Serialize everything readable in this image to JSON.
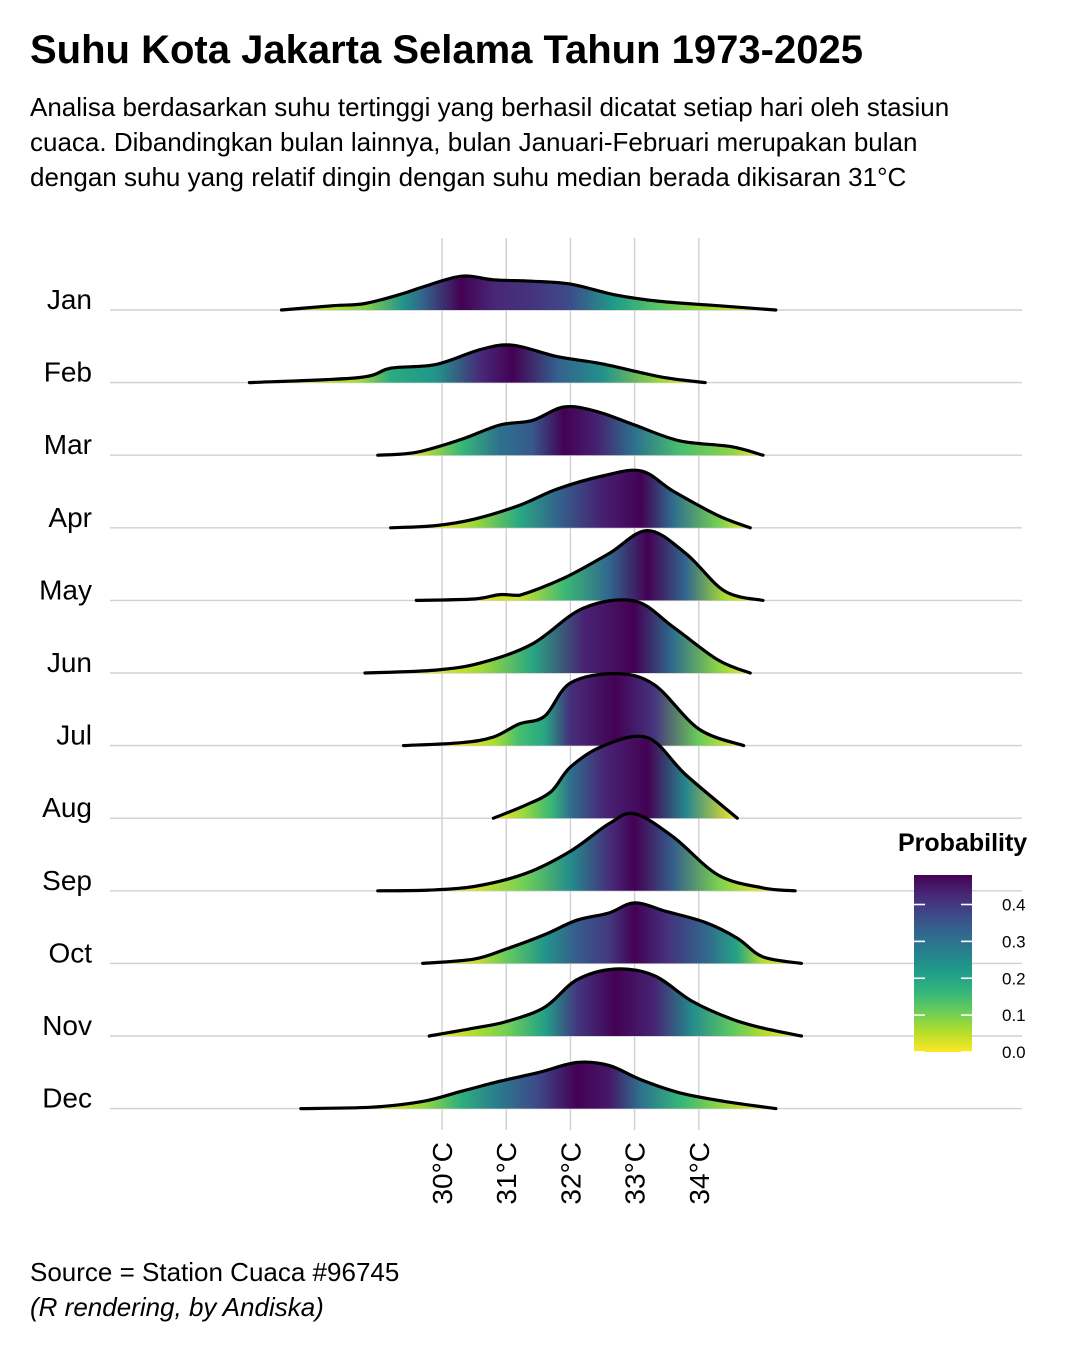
{
  "title": "Suhu Kota Jakarta Selama Tahun 1973-2025",
  "subtitle": "Analisa berdasarkan suhu tertinggi yang berhasil dicatat setiap hari oleh stasiun cuaca. Dibandingkan bulan lainnya, bulan Januari-Februari merupakan bulan dengan suhu yang relatif dingin dengan suhu median berada dikisaran 31°C",
  "caption": {
    "line1": "Source = Station Cuaca #96745",
    "line2": "(R rendering, by Andiska)"
  },
  "colors": {
    "viridis": [
      "#fde725",
      "#b5de2b",
      "#6ece58",
      "#35b779",
      "#1f9e89",
      "#26828e",
      "#31688e",
      "#3e4989",
      "#482878",
      "#440154"
    ],
    "outline": "#000000",
    "grid": "#d0d0d0",
    "background": "#ffffff"
  },
  "chart_data": {
    "type": "ridgeline",
    "xlabel": "",
    "ylabel": "",
    "x_ticks": [
      30,
      31,
      32,
      33,
      34
    ],
    "x_tick_labels": [
      "30°C",
      "31°C",
      "32°C",
      "33°C",
      "34°C"
    ],
    "x_range": [
      25,
      39
    ],
    "categories": [
      "Jan",
      "Feb",
      "Mar",
      "Apr",
      "May",
      "Jun",
      "Jul",
      "Aug",
      "Sep",
      "Oct",
      "Nov",
      "Dec"
    ],
    "grid": true,
    "legend": {
      "title": "Probability",
      "position": "right",
      "ticks": [
        0.0,
        0.1,
        0.2,
        0.3,
        0.4
      ],
      "tick_labels": [
        "0.0",
        "0.1",
        "0.2",
        "0.3",
        "0.4"
      ],
      "range": [
        0,
        0.48
      ]
    },
    "series": [
      {
        "name": "Jan",
        "x": [
          27.5,
          28.3,
          28.8,
          29.4,
          29.7,
          30.3,
          30.8,
          31.4,
          32.0,
          32.7,
          33.4,
          34.3,
          35.2
        ],
        "y": [
          0.0,
          0.06,
          0.09,
          0.23,
          0.32,
          0.47,
          0.42,
          0.4,
          0.36,
          0.21,
          0.12,
          0.06,
          0.0
        ]
      },
      {
        "name": "Feb",
        "x": [
          27.0,
          28.7,
          29.2,
          29.9,
          30.6,
          31.1,
          31.8,
          32.5,
          33.4,
          34.1
        ],
        "y": [
          0.0,
          0.07,
          0.2,
          0.25,
          0.46,
          0.52,
          0.36,
          0.26,
          0.08,
          0.0
        ]
      },
      {
        "name": "Mar",
        "x": [
          29.0,
          29.6,
          30.3,
          30.9,
          31.4,
          31.9,
          32.4,
          33.0,
          33.7,
          34.5,
          35.0
        ],
        "y": [
          0.0,
          0.04,
          0.22,
          0.42,
          0.48,
          0.67,
          0.61,
          0.42,
          0.2,
          0.12,
          0.0
        ]
      },
      {
        "name": "Apr",
        "x": [
          29.2,
          29.9,
          30.5,
          31.2,
          31.8,
          32.5,
          33.1,
          33.6,
          34.3,
          34.8
        ],
        "y": [
          0.0,
          0.03,
          0.12,
          0.31,
          0.54,
          0.72,
          0.79,
          0.51,
          0.17,
          0.0
        ]
      },
      {
        "name": "May",
        "x": [
          29.6,
          30.5,
          30.9,
          31.2,
          31.9,
          32.6,
          33.2,
          33.8,
          34.4,
          35.0
        ],
        "y": [
          0.0,
          0.02,
          0.08,
          0.07,
          0.31,
          0.65,
          0.97,
          0.65,
          0.13,
          0.0
        ]
      },
      {
        "name": "Jun",
        "x": [
          28.8,
          29.9,
          30.6,
          31.4,
          32.2,
          33.0,
          33.6,
          34.3,
          34.8
        ],
        "y": [
          0.0,
          0.04,
          0.14,
          0.4,
          0.9,
          1.0,
          0.64,
          0.18,
          0.0
        ]
      },
      {
        "name": "Jul",
        "x": [
          29.4,
          30.3,
          30.8,
          31.2,
          31.6,
          32.0,
          32.7,
          33.3,
          34.0,
          34.7
        ],
        "y": [
          0.0,
          0.04,
          0.12,
          0.3,
          0.41,
          0.87,
          1.0,
          0.85,
          0.23,
          0.0
        ]
      },
      {
        "name": "Aug",
        "x": [
          30.8,
          31.3,
          31.7,
          32.0,
          32.5,
          33.2,
          33.8,
          34.6
        ],
        "y": [
          0.0,
          0.18,
          0.37,
          0.71,
          1.0,
          1.12,
          0.6,
          0.0
        ]
      },
      {
        "name": "Sep",
        "x": [
          29.0,
          29.8,
          30.5,
          31.3,
          32.0,
          32.6,
          33.0,
          33.6,
          34.3,
          35.0,
          35.5
        ],
        "y": [
          0.0,
          0.01,
          0.06,
          0.24,
          0.55,
          0.93,
          1.07,
          0.75,
          0.22,
          0.04,
          0.0
        ]
      },
      {
        "name": "Oct",
        "x": [
          29.7,
          30.5,
          31.0,
          31.6,
          32.1,
          32.6,
          33.0,
          33.5,
          34.1,
          34.6,
          35.0,
          35.6
        ],
        "y": [
          0.0,
          0.06,
          0.2,
          0.4,
          0.6,
          0.7,
          0.84,
          0.72,
          0.57,
          0.35,
          0.09,
          0.0
        ]
      },
      {
        "name": "Nov",
        "x": [
          29.8,
          30.5,
          31.0,
          31.6,
          32.1,
          32.7,
          33.3,
          33.9,
          34.5,
          35.0,
          35.6
        ],
        "y": [
          0.0,
          0.11,
          0.2,
          0.4,
          0.78,
          0.93,
          0.84,
          0.48,
          0.24,
          0.11,
          0.0
        ]
      },
      {
        "name": "Dec",
        "x": [
          27.8,
          28.9,
          29.7,
          30.3,
          30.9,
          31.5,
          32.1,
          32.6,
          33.1,
          33.7,
          34.4,
          35.2
        ],
        "y": [
          0.0,
          0.02,
          0.1,
          0.24,
          0.38,
          0.5,
          0.64,
          0.6,
          0.4,
          0.22,
          0.1,
          0.0
        ]
      }
    ]
  }
}
